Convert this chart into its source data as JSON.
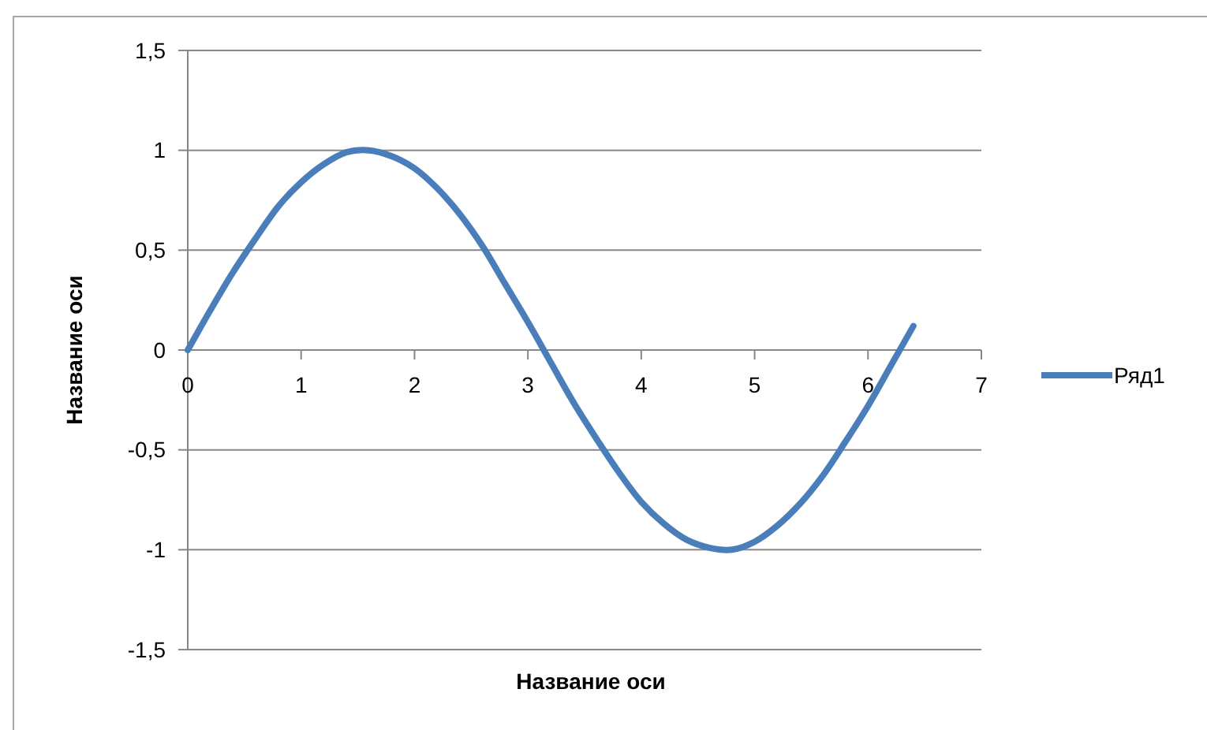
{
  "chart_data": {
    "type": "line",
    "xlabel": "Название оси",
    "ylabel": "Название оси",
    "x": [
      0,
      0.2,
      0.4,
      0.6,
      0.8,
      1.0,
      1.2,
      1.4,
      1.6,
      1.8,
      2.0,
      2.2,
      2.4,
      2.6,
      2.8,
      3.0,
      3.2,
      3.4,
      3.6,
      3.8,
      4.0,
      4.2,
      4.4,
      4.6,
      4.8,
      5.0,
      5.2,
      5.4,
      5.6,
      5.8,
      6.0,
      6.2,
      6.4
    ],
    "series": [
      {
        "name": "Ряд1",
        "color": "#4a7ebb",
        "values": [
          0,
          0.2,
          0.39,
          0.56,
          0.72,
          0.84,
          0.93,
          0.99,
          1.0,
          0.97,
          0.91,
          0.81,
          0.68,
          0.52,
          0.33,
          0.14,
          -0.06,
          -0.26,
          -0.44,
          -0.61,
          -0.76,
          -0.87,
          -0.95,
          -0.99,
          -1.0,
          -0.96,
          -0.88,
          -0.77,
          -0.63,
          -0.46,
          -0.28,
          -0.08,
          0.12
        ]
      }
    ],
    "xlim": [
      0,
      7
    ],
    "xticks": [
      0,
      1,
      2,
      3,
      4,
      5,
      6,
      7
    ],
    "ylim": [
      -1.5,
      1.5
    ],
    "yticks": [
      {
        "value": -1.5,
        "label": "-1,5"
      },
      -1,
      {
        "value": -0.5,
        "label": "-0,5"
      },
      0,
      {
        "value": 0.5,
        "label": "0,5"
      },
      1,
      {
        "value": 1.5,
        "label": "1,5"
      }
    ],
    "grid": "y",
    "legend": "right",
    "marker": "none",
    "line_style": "solid"
  }
}
